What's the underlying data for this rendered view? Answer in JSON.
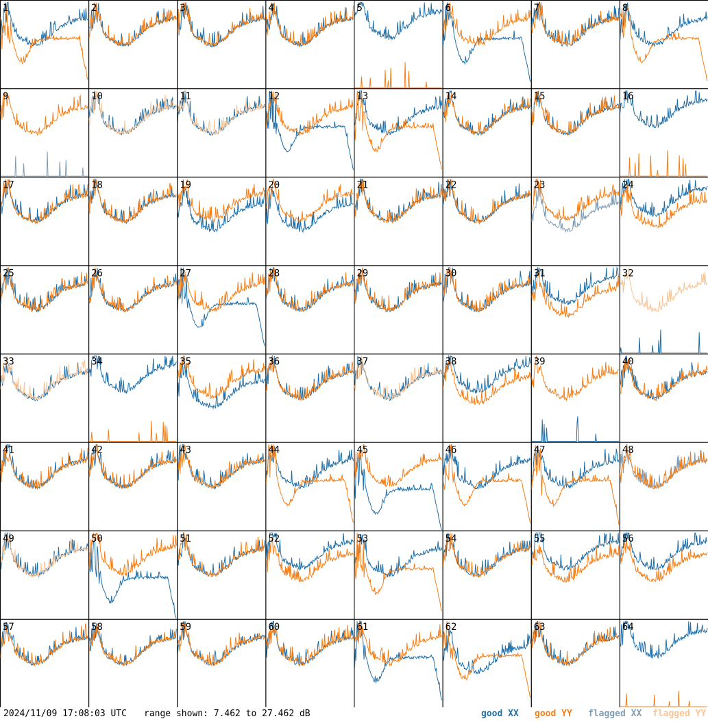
{
  "chart_data": {
    "type": "line",
    "layout": "8x8 small multiples",
    "panel_labels": [
      "1",
      "2",
      "3",
      "4",
      "5",
      "6",
      "7",
      "8",
      "9",
      "10",
      "11",
      "12",
      "13",
      "14",
      "15",
      "16",
      "17",
      "18",
      "19",
      "20",
      "21",
      "22",
      "23",
      "24",
      "25",
      "26",
      "27",
      "28",
      "29",
      "30",
      "31",
      "32",
      "33",
      "34",
      "35",
      "36",
      "37",
      "38",
      "39",
      "40",
      "41",
      "42",
      "43",
      "44",
      "45",
      "46",
      "47",
      "48",
      "49",
      "50",
      "51",
      "52",
      "53",
      "54",
      "55",
      "56",
      "57",
      "58",
      "59",
      "60",
      "61",
      "62",
      "63",
      "64"
    ],
    "timestamp": "2024/11/09 17:08:03 UTC",
    "range_text": "range shown: 7.462 to 27.462 dB",
    "ylim_db": [
      7.462,
      27.462
    ],
    "legend": [
      {
        "label": "good XX",
        "color": "#1f6fa8"
      },
      {
        "label": "good YY",
        "color": "#f57f17"
      },
      {
        "label": "flagged XX",
        "color": "#7f9db5"
      },
      {
        "label": "flagged YY",
        "color": "#f9c597"
      }
    ],
    "legend_placement": "bottom-right",
    "flagged_xx_panels": [
      9,
      23,
      48
    ],
    "flagged_yy_panels": [
      10,
      11,
      32,
      33,
      37,
      49
    ],
    "yy_low_panels": [
      5,
      16,
      34,
      64
    ],
    "xx_low_panels": [
      9,
      32,
      39
    ],
    "xx_drooping_panels": [
      6,
      12,
      27,
      45,
      50,
      61
    ],
    "yy_drooping_panels": [
      1,
      8,
      13,
      44,
      46,
      47,
      53,
      62
    ],
    "xx_above_yy_panels": [
      5,
      16,
      24,
      31,
      34,
      38,
      52,
      55,
      56,
      64
    ],
    "yy_above_xx_panels": [
      19,
      20,
      23,
      35,
      45,
      50,
      62
    ]
  }
}
